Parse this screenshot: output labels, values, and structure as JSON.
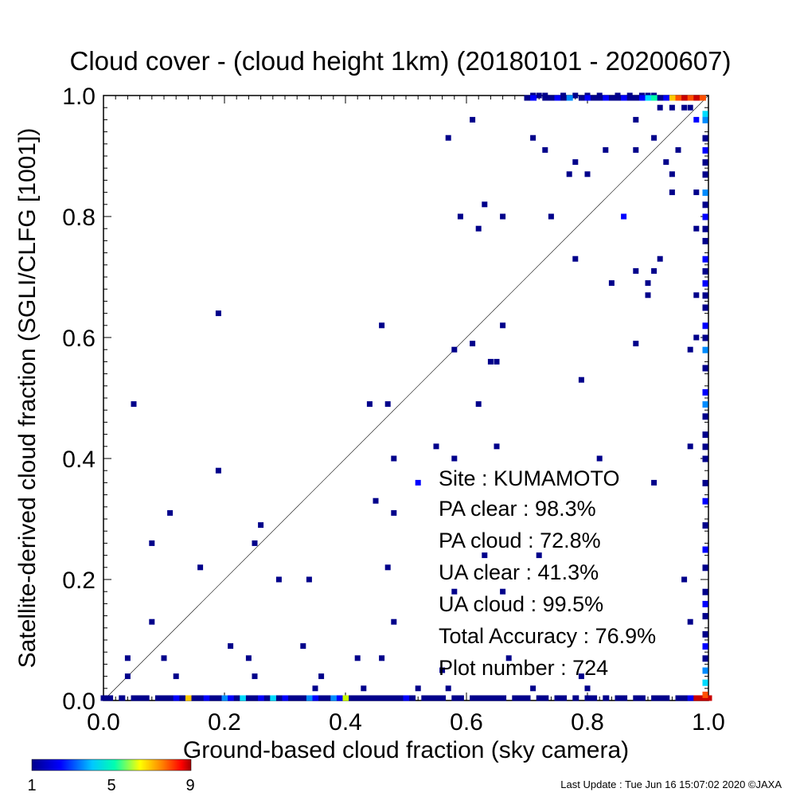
{
  "chart_data": {
    "type": "scatter",
    "title": "Cloud cover - (cloud height 1km)  (20180101 - 20200607)",
    "xlabel": "Ground-based cloud fraction (sky camera)",
    "ylabel": "Satellite-derived cloud fraction (SGLI/CLFG [1001])",
    "xlim": [
      0.0,
      1.0
    ],
    "ylim": [
      0.0,
      1.0
    ],
    "xticks": [
      "0.0",
      "0.2",
      "0.4",
      "0.6",
      "0.8",
      "1.0"
    ],
    "yticks": [
      "0.0",
      "0.2",
      "0.4",
      "0.6",
      "0.8",
      "1.0"
    ],
    "reference_line": "1:1 diagonal",
    "grid": false,
    "colorbar": {
      "min": "1",
      "mid": "5",
      "max": "9",
      "placement": "bottom-left",
      "colors": [
        "#00008b",
        "#0000ff",
        "#00c8ff",
        "#00ffb0",
        "#ffff00",
        "#ff8000",
        "#ff0000",
        "#a00000"
      ]
    },
    "annotations": {
      "site": "Site : KUMAMOTO",
      "pa_clear": "PA clear :  98.3%",
      "pa_cloud": "PA cloud :  72.8%",
      "ua_clear": "UA clear :  41.3%",
      "ua_cloud": "UA cloud :  99.5%",
      "total_accuracy": "Total Accuracy :  76.9%",
      "plot_number": "Plot number :       724"
    },
    "points": [
      [
        0.05,
        0.49,
        1
      ],
      [
        0.19,
        0.64,
        1
      ],
      [
        0.19,
        0.38,
        1
      ],
      [
        0.11,
        0.31,
        1
      ],
      [
        0.08,
        0.26,
        1
      ],
      [
        0.16,
        0.22,
        1
      ],
      [
        0.08,
        0.13,
        1
      ],
      [
        0.04,
        0.07,
        1
      ],
      [
        0.04,
        0.04,
        1
      ],
      [
        0.1,
        0.07,
        1
      ],
      [
        0.12,
        0.04,
        1
      ],
      [
        0.21,
        0.09,
        1
      ],
      [
        0.24,
        0.07,
        1
      ],
      [
        0.25,
        0.04,
        1
      ],
      [
        0.25,
        0.26,
        1
      ],
      [
        0.26,
        0.29,
        1
      ],
      [
        0.29,
        0.2,
        1
      ],
      [
        0.34,
        0.2,
        1
      ],
      [
        0.33,
        0.09,
        1
      ],
      [
        0.36,
        0.04,
        1
      ],
      [
        0.35,
        0.02,
        1
      ],
      [
        0.42,
        0.07,
        1
      ],
      [
        0.43,
        0.02,
        1
      ],
      [
        0.44,
        0.49,
        1
      ],
      [
        0.45,
        0.33,
        1
      ],
      [
        0.46,
        0.62,
        1
      ],
      [
        0.47,
        0.49,
        1
      ],
      [
        0.47,
        0.22,
        1
      ],
      [
        0.48,
        0.4,
        1
      ],
      [
        0.48,
        0.31,
        1
      ],
      [
        0.48,
        0.13,
        1
      ],
      [
        0.46,
        0.07,
        1
      ],
      [
        0.52,
        0.36,
        2
      ],
      [
        0.52,
        0.02,
        1
      ],
      [
        0.55,
        0.42,
        1
      ],
      [
        0.57,
        0.93,
        1
      ],
      [
        0.58,
        0.58,
        1
      ],
      [
        0.58,
        0.4,
        1
      ],
      [
        0.58,
        0.18,
        1
      ],
      [
        0.56,
        0.05,
        1
      ],
      [
        0.57,
        0.02,
        1
      ],
      [
        0.59,
        0.8,
        1
      ],
      [
        0.61,
        0.96,
        1
      ],
      [
        0.61,
        0.59,
        1
      ],
      [
        0.62,
        0.78,
        1
      ],
      [
        0.63,
        0.82,
        1
      ],
      [
        0.62,
        0.49,
        1
      ],
      [
        0.63,
        0.24,
        1
      ],
      [
        0.64,
        0.56,
        1
      ],
      [
        0.65,
        0.56,
        1
      ],
      [
        0.65,
        0.42,
        1
      ],
      [
        0.66,
        0.8,
        1
      ],
      [
        0.66,
        0.62,
        1
      ],
      [
        0.66,
        0.18,
        1
      ],
      [
        0.67,
        0.07,
        1
      ],
      [
        0.71,
        0.93,
        1
      ],
      [
        0.73,
        0.91,
        1
      ],
      [
        0.72,
        0.24,
        1
      ],
      [
        0.71,
        0.02,
        1
      ],
      [
        0.74,
        0.8,
        1
      ],
      [
        0.77,
        0.87,
        1
      ],
      [
        0.78,
        0.89,
        1
      ],
      [
        0.78,
        0.73,
        1
      ],
      [
        0.79,
        0.53,
        1
      ],
      [
        0.8,
        0.87,
        1
      ],
      [
        0.79,
        0.04,
        1
      ],
      [
        0.8,
        0.02,
        1
      ],
      [
        0.82,
        0.4,
        1
      ],
      [
        0.83,
        0.91,
        1
      ],
      [
        0.84,
        0.69,
        1
      ],
      [
        0.86,
        0.8,
        2
      ],
      [
        0.88,
        0.96,
        1
      ],
      [
        0.88,
        0.91,
        1
      ],
      [
        0.88,
        0.71,
        1
      ],
      [
        0.88,
        0.59,
        1
      ],
      [
        0.9,
        0.69,
        1
      ],
      [
        0.9,
        0.67,
        1
      ],
      [
        0.91,
        0.71,
        1
      ],
      [
        0.91,
        0.93,
        1
      ],
      [
        0.91,
        0.36,
        1
      ],
      [
        0.92,
        0.73,
        1
      ],
      [
        0.92,
        0.98,
        1
      ],
      [
        0.93,
        0.89,
        1
      ],
      [
        0.94,
        0.87,
        1
      ],
      [
        0.94,
        0.84,
        1
      ],
      [
        0.95,
        0.91,
        1
      ],
      [
        0.94,
        0.98,
        1
      ],
      [
        0.96,
        0.98,
        1
      ],
      [
        0.97,
        0.98,
        1
      ],
      [
        0.96,
        0.2,
        1
      ],
      [
        0.97,
        0.13,
        1
      ],
      [
        0.97,
        0.42,
        1
      ],
      [
        0.98,
        0.84,
        1
      ],
      [
        0.98,
        0.78,
        1
      ],
      [
        0.98,
        0.67,
        1
      ],
      [
        0.98,
        0.6,
        1
      ],
      [
        0.97,
        0.58,
        1
      ],
      [
        0.98,
        0.96,
        2
      ],
      [
        0.71,
        1.0,
        1
      ],
      [
        0.72,
        1.0,
        1
      ],
      [
        0.73,
        1.0,
        1
      ],
      [
        0.76,
        1.0,
        1
      ],
      [
        0.78,
        1.0,
        1
      ],
      [
        0.8,
        1.0,
        1
      ],
      [
        0.82,
        1.0,
        1
      ],
      [
        0.85,
        1.0,
        1
      ],
      [
        0.87,
        1.0,
        1
      ],
      [
        0.89,
        1.0,
        1
      ],
      [
        0.9,
        1.0,
        1
      ],
      [
        0.91,
        1.0,
        1
      ]
    ],
    "top_edge": [
      [
        0.7,
        1
      ],
      [
        0.71,
        2
      ],
      [
        0.73,
        1
      ],
      [
        0.74,
        1
      ],
      [
        0.75,
        2
      ],
      [
        0.76,
        1
      ],
      [
        0.77,
        3
      ],
      [
        0.79,
        1
      ],
      [
        0.8,
        2
      ],
      [
        0.81,
        1
      ],
      [
        0.82,
        1
      ],
      [
        0.83,
        2
      ],
      [
        0.84,
        1
      ],
      [
        0.85,
        1
      ],
      [
        0.86,
        2
      ],
      [
        0.87,
        1
      ],
      [
        0.88,
        1
      ],
      [
        0.89,
        2
      ],
      [
        0.9,
        4
      ],
      [
        0.91,
        5
      ],
      [
        0.92,
        1
      ],
      [
        0.93,
        2
      ],
      [
        0.94,
        7
      ],
      [
        0.95,
        8
      ],
      [
        0.96,
        9
      ],
      [
        0.97,
        8
      ],
      [
        0.98,
        9
      ],
      [
        0.99,
        8
      ]
    ],
    "right_edge": [
      [
        0.97,
        4
      ],
      [
        0.96,
        3
      ],
      [
        0.93,
        1
      ],
      [
        0.91,
        2
      ],
      [
        0.89,
        1
      ],
      [
        0.87,
        1
      ],
      [
        0.84,
        3
      ],
      [
        0.82,
        1
      ],
      [
        0.8,
        2
      ],
      [
        0.78,
        1
      ],
      [
        0.76,
        1
      ],
      [
        0.73,
        2
      ],
      [
        0.71,
        1
      ],
      [
        0.69,
        2
      ],
      [
        0.67,
        1
      ],
      [
        0.65,
        1
      ],
      [
        0.62,
        2
      ],
      [
        0.6,
        1
      ],
      [
        0.58,
        3
      ],
      [
        0.55,
        1
      ],
      [
        0.51,
        2
      ],
      [
        0.49,
        3
      ],
      [
        0.47,
        1
      ],
      [
        0.44,
        1
      ],
      [
        0.42,
        1
      ],
      [
        0.4,
        1
      ],
      [
        0.36,
        1
      ],
      [
        0.33,
        2
      ],
      [
        0.29,
        1
      ],
      [
        0.25,
        2
      ],
      [
        0.22,
        1
      ],
      [
        0.18,
        1
      ],
      [
        0.16,
        2
      ],
      [
        0.14,
        1
      ],
      [
        0.11,
        1
      ],
      [
        0.09,
        2
      ],
      [
        0.07,
        1
      ],
      [
        0.05,
        3
      ],
      [
        0.03,
        4
      ],
      [
        0.01,
        8
      ]
    ],
    "bottom_edge": [
      [
        0.0,
        1
      ],
      [
        0.01,
        1
      ],
      [
        0.03,
        1
      ],
      [
        0.05,
        1
      ],
      [
        0.06,
        1
      ],
      [
        0.07,
        1
      ],
      [
        0.09,
        1
      ],
      [
        0.1,
        1
      ],
      [
        0.11,
        1
      ],
      [
        0.12,
        2
      ],
      [
        0.13,
        1
      ],
      [
        0.14,
        7
      ],
      [
        0.15,
        1
      ],
      [
        0.16,
        1
      ],
      [
        0.17,
        2
      ],
      [
        0.18,
        1
      ],
      [
        0.19,
        1
      ],
      [
        0.2,
        3
      ],
      [
        0.21,
        2
      ],
      [
        0.22,
        1
      ],
      [
        0.23,
        4
      ],
      [
        0.24,
        1
      ],
      [
        0.25,
        1
      ],
      [
        0.26,
        2
      ],
      [
        0.27,
        1
      ],
      [
        0.28,
        4
      ],
      [
        0.29,
        1
      ],
      [
        0.3,
        2
      ],
      [
        0.31,
        1
      ],
      [
        0.32,
        1
      ],
      [
        0.33,
        1
      ],
      [
        0.34,
        3
      ],
      [
        0.35,
        2
      ],
      [
        0.36,
        1
      ],
      [
        0.37,
        1
      ],
      [
        0.38,
        3
      ],
      [
        0.39,
        2
      ],
      [
        0.4,
        6
      ],
      [
        0.41,
        1
      ],
      [
        0.42,
        1
      ],
      [
        0.43,
        1
      ],
      [
        0.44,
        1
      ],
      [
        0.45,
        1
      ],
      [
        0.46,
        1
      ],
      [
        0.47,
        1
      ],
      [
        0.48,
        1
      ],
      [
        0.49,
        1
      ],
      [
        0.5,
        2
      ],
      [
        0.51,
        1
      ],
      [
        0.53,
        1
      ],
      [
        0.54,
        1
      ],
      [
        0.55,
        1
      ],
      [
        0.56,
        1
      ],
      [
        0.58,
        1
      ],
      [
        0.59,
        1
      ],
      [
        0.61,
        1
      ],
      [
        0.62,
        1
      ],
      [
        0.63,
        1
      ],
      [
        0.64,
        1
      ],
      [
        0.65,
        1
      ],
      [
        0.66,
        1
      ],
      [
        0.68,
        1
      ],
      [
        0.69,
        1
      ],
      [
        0.7,
        1
      ],
      [
        0.72,
        1
      ],
      [
        0.73,
        1
      ],
      [
        0.75,
        1
      ],
      [
        0.76,
        1
      ],
      [
        0.78,
        1
      ],
      [
        0.8,
        1
      ],
      [
        0.81,
        1
      ],
      [
        0.83,
        1
      ],
      [
        0.85,
        1
      ],
      [
        0.86,
        1
      ],
      [
        0.88,
        1
      ],
      [
        0.89,
        1
      ],
      [
        0.91,
        1
      ],
      [
        0.92,
        1
      ],
      [
        0.93,
        1
      ],
      [
        0.95,
        1
      ],
      [
        0.96,
        1
      ],
      [
        0.97,
        2
      ],
      [
        0.98,
        9
      ],
      [
        0.99,
        9
      ],
      [
        1.0,
        9
      ]
    ]
  },
  "footer": {
    "last_update": "Last Update : Tue Jun 16 15:07:02 2020  ©JAXA"
  }
}
